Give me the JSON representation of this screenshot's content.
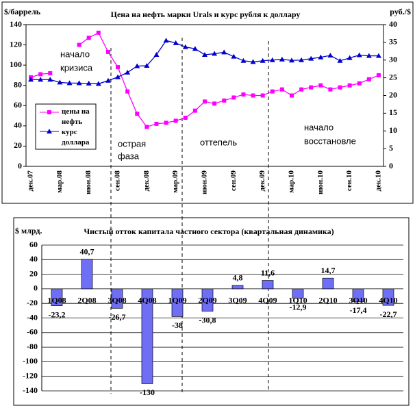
{
  "chart_data": [
    {
      "type": "line",
      "title": "Цена на нефть марки Urals  и курс рубля к доллару",
      "y_label": "$/баррель",
      "y2_label": "руб./$",
      "categories": [
        "дек.07",
        null,
        null,
        "мар.08",
        null,
        null,
        "июн.08",
        null,
        null,
        "сен.08",
        null,
        null,
        "дек.08",
        null,
        null,
        "мар.09",
        null,
        null,
        "июн.09",
        null,
        null,
        "сен.09",
        null,
        null,
        "дек.09",
        null,
        null,
        "мар.10",
        null,
        null,
        "июн.10",
        null,
        null,
        "сен.10",
        null,
        null,
        "дек.10"
      ],
      "series": [
        {
          "name": "цены на нефть",
          "color": "#ff00ff",
          "marker": "square",
          "values": [
            88,
            91,
            92,
            null,
            null,
            120,
            127,
            132,
            113,
            98,
            74,
            52,
            39,
            42,
            43,
            45,
            48,
            55,
            64,
            62,
            65,
            68,
            71,
            70,
            70,
            74,
            76,
            70,
            76,
            78,
            80,
            76,
            78,
            80,
            82,
            86,
            90
          ]
        },
        {
          "name": "курс доллара",
          "color": "#0000cc",
          "marker": "triangle",
          "axis": "y2",
          "values": [
            24.5,
            24.5,
            24.5,
            23.7,
            23.5,
            23.5,
            23.4,
            23.3,
            24.2,
            25.2,
            26.5,
            28.3,
            28.4,
            31.5,
            35.5,
            34.8,
            33.7,
            33.2,
            31.5,
            31.8,
            32.2,
            31,
            29.8,
            29.5,
            29.8,
            30,
            30.2,
            29.9,
            30,
            30.4,
            30.8,
            31.3,
            29.8,
            30.6,
            31.4,
            31.2,
            31.2
          ]
        }
      ],
      "ylim": [
        0,
        140
      ],
      "yticks": [
        0,
        20,
        40,
        60,
        80,
        100,
        120,
        140
      ],
      "y2lim": [
        0,
        40
      ],
      "y2ticks": [
        0,
        5,
        10,
        15,
        20,
        25,
        30,
        35,
        40
      ],
      "annotations": [
        "начало",
        "кризиса",
        "острая",
        "фаза",
        "оттепель",
        "начало",
        "восстановле"
      ]
    },
    {
      "type": "bar",
      "title": "Чистый отток капитала частного сектора (квартальная динамика)",
      "y_label": "$ млрд.",
      "categories": [
        "1Q08",
        "2Q08",
        "3Q08",
        "4Q08",
        "1Q09",
        "2Q09",
        "3Q09",
        "4Q09",
        "1Q10",
        "2Q10",
        "3Q10",
        "4Q10"
      ],
      "values": [
        -23.2,
        40.7,
        -26.7,
        -130,
        -38,
        -30.8,
        4.8,
        11.6,
        -12.9,
        14.7,
        -17.4,
        -22.7
      ],
      "value_labels": [
        "-23,2",
        "40,7",
        "-26,7",
        "-130",
        "-38",
        "-30,8",
        "4,8",
        "11,6",
        "-12,9",
        "14,7",
        "-17,4",
        "-22,7"
      ],
      "color": "#6f6ff5",
      "ylim": [
        -140,
        60
      ],
      "yticks": [
        -140,
        -120,
        -100,
        -80,
        -60,
        -40,
        -20,
        0,
        20,
        40,
        60
      ],
      "grid": true
    }
  ]
}
